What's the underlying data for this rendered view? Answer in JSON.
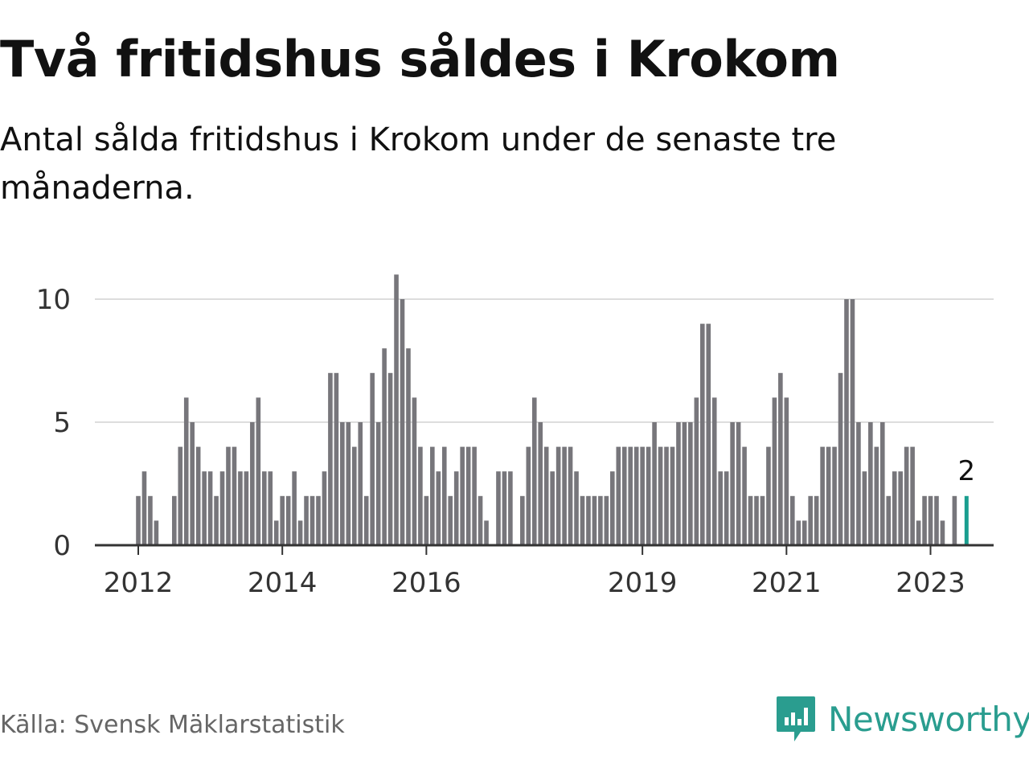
{
  "header": {
    "title": "Två fritidshus såldes i Krokom",
    "subtitle": "Antal sålda fritidshus i Krokom under de senaste tre månaderna."
  },
  "footer": {
    "source": "Källa: Svensk Mäklarstatistik",
    "brand": "Newsworthy"
  },
  "colors": {
    "bar": "#77767b",
    "highlight": "#1a9e8f",
    "grid": "#dddddd",
    "axis": "#333333",
    "brand": "#2a9d8f"
  },
  "chart_data": {
    "type": "bar",
    "title": "Två fritidshus såldes i Krokom",
    "subtitle": "Antal sålda fritidshus i Krokom under de senaste tre månaderna.",
    "xlabel": "",
    "ylabel": "",
    "ylim": [
      0,
      11
    ],
    "yticks": [
      0,
      5,
      10
    ],
    "x_ticks": [
      {
        "label": "2012",
        "index": 0
      },
      {
        "label": "2014",
        "index": 24
      },
      {
        "label": "2016",
        "index": 48
      },
      {
        "label": "2019",
        "index": 84
      },
      {
        "label": "2021",
        "index": 108
      },
      {
        "label": "2023",
        "index": 132
      }
    ],
    "grid": true,
    "values": [
      2,
      3,
      2,
      1,
      null,
      null,
      2,
      4,
      6,
      5,
      4,
      3,
      3,
      2,
      3,
      4,
      4,
      3,
      3,
      5,
      6,
      3,
      3,
      1,
      2,
      2,
      3,
      1,
      2,
      2,
      2,
      3,
      7,
      7,
      5,
      5,
      4,
      5,
      2,
      7,
      5,
      8,
      7,
      11,
      10,
      8,
      6,
      4,
      2,
      4,
      3,
      4,
      2,
      3,
      4,
      4,
      4,
      2,
      1,
      null,
      3,
      3,
      3,
      null,
      2,
      4,
      6,
      5,
      4,
      3,
      4,
      4,
      4,
      3,
      2,
      2,
      2,
      2,
      2,
      3,
      4,
      4,
      4,
      4,
      4,
      4,
      5,
      4,
      4,
      4,
      5,
      5,
      5,
      6,
      9,
      9,
      6,
      3,
      3,
      5,
      5,
      4,
      2,
      2,
      2,
      4,
      6,
      7,
      6,
      2,
      1,
      1,
      2,
      2,
      4,
      4,
      4,
      7,
      10,
      10,
      5,
      3,
      5,
      4,
      5,
      2,
      3,
      3,
      4,
      4,
      1,
      2,
      2,
      2,
      1,
      null,
      2
    ],
    "highlight_index": 138,
    "highlight_label": "2"
  }
}
